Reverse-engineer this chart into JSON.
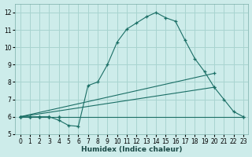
{
  "xlabel": "Humidex (Indice chaleur)",
  "bg_color": "#cdecea",
  "grid_color": "#a8d4d0",
  "line_color": "#1a6e65",
  "xlim": [
    -0.5,
    23.5
  ],
  "ylim": [
    5.0,
    12.5
  ],
  "xticks": [
    0,
    1,
    2,
    3,
    4,
    5,
    6,
    7,
    8,
    9,
    10,
    11,
    12,
    13,
    14,
    15,
    16,
    17,
    18,
    19,
    20,
    21,
    22,
    23
  ],
  "yticks": [
    5,
    6,
    7,
    8,
    9,
    10,
    11,
    12
  ],
  "series": [
    {
      "x": [
        0,
        23
      ],
      "y": [
        6.0,
        6.0
      ],
      "markers_x": [
        0,
        1,
        2,
        3,
        4,
        23
      ],
      "markers_y": [
        6.0,
        6.0,
        6.0,
        6.0,
        6.0,
        6.0
      ]
    },
    {
      "x": [
        0,
        20
      ],
      "y": [
        6.0,
        7.7
      ],
      "markers_x": [
        0,
        1,
        2,
        3,
        4,
        20
      ],
      "markers_y": [
        6.0,
        6.0,
        6.0,
        6.0,
        6.0,
        7.7
      ]
    },
    {
      "x": [
        0,
        20
      ],
      "y": [
        6.0,
        8.5
      ],
      "markers_x": [
        0,
        1,
        2,
        3,
        4,
        20
      ],
      "markers_y": [
        6.0,
        6.0,
        6.0,
        6.0,
        6.0,
        8.5
      ]
    },
    {
      "x": [
        0,
        1,
        2,
        3,
        4,
        5,
        6,
        7,
        8,
        9,
        10,
        11,
        12,
        13,
        14,
        15,
        16,
        17,
        18,
        19,
        20,
        21,
        22,
        23
      ],
      "y": [
        6.0,
        6.0,
        6.0,
        6.0,
        5.8,
        5.5,
        5.45,
        7.8,
        8.0,
        9.0,
        10.3,
        11.05,
        11.4,
        11.75,
        12.0,
        11.7,
        11.5,
        10.4,
        9.35,
        8.6,
        7.7,
        7.0,
        6.3,
        6.0
      ],
      "markers_x": [
        0,
        1,
        2,
        3,
        4,
        5,
        6,
        7,
        8,
        9,
        10,
        11,
        12,
        13,
        14,
        15,
        16,
        17,
        18,
        19,
        20,
        21,
        22,
        23
      ],
      "markers_y": [
        6.0,
        6.0,
        6.0,
        6.0,
        5.8,
        5.5,
        5.45,
        7.8,
        8.0,
        9.0,
        10.3,
        11.05,
        11.4,
        11.75,
        12.0,
        11.7,
        11.5,
        10.4,
        9.35,
        8.6,
        7.7,
        7.0,
        6.3,
        6.0
      ]
    }
  ]
}
